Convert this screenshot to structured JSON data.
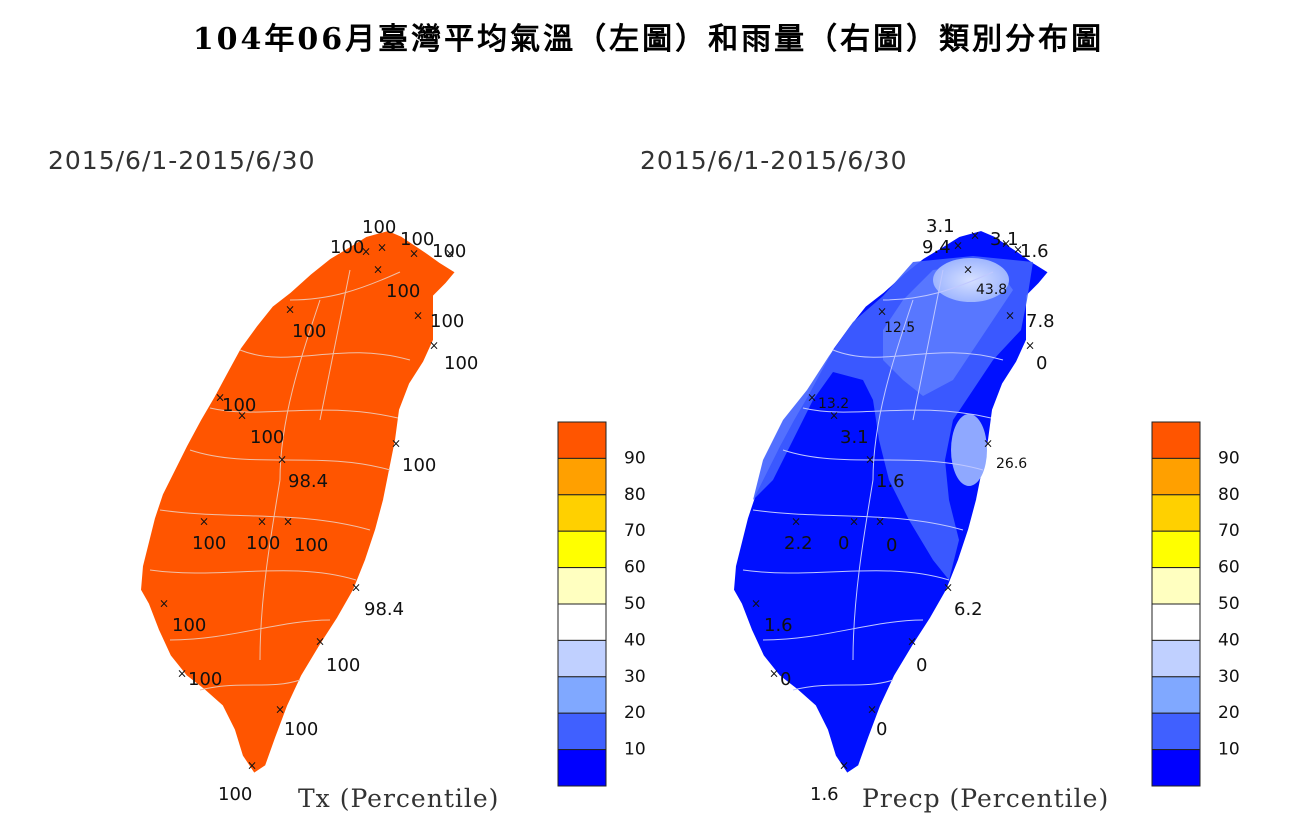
{
  "title": "104年06月臺灣平均氣溫（左圖）和雨量（右圖）類別分布圖",
  "maps": [
    {
      "id": "temperature",
      "date_range": "2015/6/1-2015/6/30",
      "legend_title": "Tx (Percentile)",
      "fill_color": "#ff5500",
      "stations": [
        {
          "value": "100"
        },
        {
          "value": "100"
        },
        {
          "value": "100"
        },
        {
          "value": "100"
        },
        {
          "value": "100"
        },
        {
          "value": "100"
        },
        {
          "value": "100"
        },
        {
          "value": "100"
        },
        {
          "value": "100"
        },
        {
          "value": "100"
        },
        {
          "value": "98.4"
        },
        {
          "value": "100"
        },
        {
          "value": "100"
        },
        {
          "value": "100"
        },
        {
          "value": "100"
        },
        {
          "value": "98.4"
        },
        {
          "value": "100"
        },
        {
          "value": "100"
        },
        {
          "value": "100"
        },
        {
          "value": "100"
        },
        {
          "value": "100"
        }
      ]
    },
    {
      "id": "precipitation",
      "date_range": "2015/6/1-2015/6/30",
      "legend_title": "Precp (Percentile)",
      "fill_color": "#0000ff",
      "stations": [
        {
          "value": "3.1"
        },
        {
          "value": "9.4"
        },
        {
          "value": "3.1"
        },
        {
          "value": "1.6"
        },
        {
          "value": "43.8"
        },
        {
          "value": "12.5"
        },
        {
          "value": "7.8"
        },
        {
          "value": "0"
        },
        {
          "value": "13.2"
        },
        {
          "value": "3.1"
        },
        {
          "value": "1.6"
        },
        {
          "value": "26.6"
        },
        {
          "value": "2.2"
        },
        {
          "value": "0"
        },
        {
          "value": "0"
        },
        {
          "value": "6.2"
        },
        {
          "value": "1.6"
        },
        {
          "value": "0"
        },
        {
          "value": "0"
        },
        {
          "value": "0"
        },
        {
          "value": "1.6"
        }
      ]
    }
  ],
  "legend": {
    "labels": [
      "90",
      "80",
      "70",
      "60",
      "50",
      "40",
      "30",
      "20",
      "10"
    ],
    "colors": [
      "#ff5500",
      "#ffa000",
      "#ffd000",
      "#ffff00",
      "#ffffc0",
      "#ffffff",
      "#c0d0ff",
      "#80a8ff",
      "#4060ff",
      "#0000ff"
    ]
  }
}
